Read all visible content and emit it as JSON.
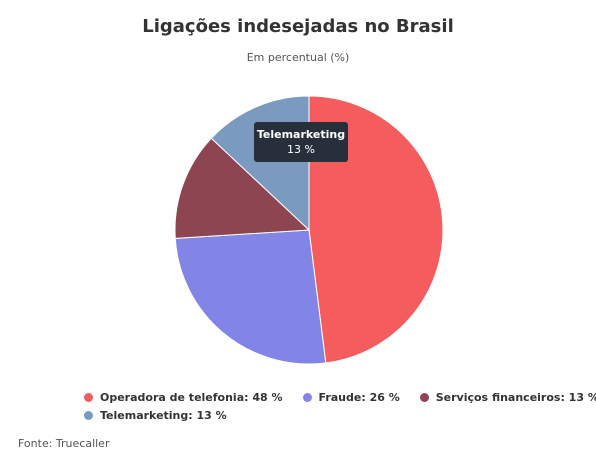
{
  "chart_data": {
    "type": "pie",
    "title": "Ligações indesejadas no Brasil",
    "subtitle": "Em percentual (%)",
    "unit": "%",
    "categories": [
      "Operadora de telefonia",
      "Fraude",
      "Serviços financeiros",
      "Telemarketing"
    ],
    "values": [
      48,
      26,
      13,
      13
    ],
    "colors": [
      "#f55c5e",
      "#8385e6",
      "#8e4552",
      "#7b9ac0"
    ],
    "legend_position": "bottom",
    "legend": [
      {
        "text": "Operadora de telefonia: 48 %",
        "color": "#f55c5e"
      },
      {
        "text": "Fraude: 26 %",
        "color": "#8385e6"
      },
      {
        "text": "Serviços financeiros: 13 %",
        "color": "#8e4552"
      },
      {
        "text": "Telemarketing: 13 %",
        "color": "#7b9ac0"
      }
    ],
    "tooltip": {
      "title": "Telemarketing",
      "value": "13 %"
    },
    "source": "Fonte: Truecaller"
  }
}
